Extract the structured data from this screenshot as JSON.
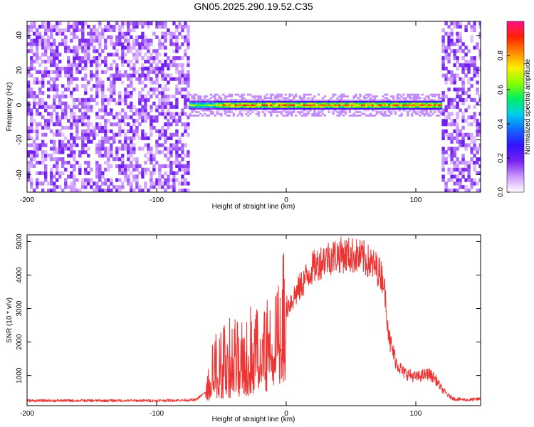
{
  "page": {
    "title": "GN05.2025.290.19.52.C35"
  },
  "colors": {
    "snr_line": "#ee3333",
    "axis": "#000000",
    "colormap": [
      "#ffffff",
      "#cc99ff",
      "#7722ee",
      "#3311ff",
      "#1166ff",
      "#00ccee",
      "#00ee66",
      "#88ff00",
      "#ffee00",
      "#ff8800",
      "#ff2200",
      "#ff1188"
    ]
  },
  "chart_data": [
    {
      "type": "heatmap",
      "title": "GN05.2025.290.19.52.C35",
      "xlabel": "Height of straight line (km)",
      "ylabel": "Frequency (Hz)",
      "xlim": [
        -200,
        150
      ],
      "ylim": [
        -50,
        48
      ],
      "xticks": [
        -200,
        -100,
        0,
        100
      ],
      "yticks": [
        -40,
        -20,
        0,
        20,
        40
      ],
      "colorbar": {
        "label": "Normalized spectral amplitude",
        "range": [
          0.0,
          1.0
        ],
        "ticks": [
          "0.0",
          "0.2",
          "0.4",
          "0.6",
          "0.8"
        ]
      },
      "regions": [
        {
          "x_range": [
            -200,
            -75
          ],
          "description": "broadband noise",
          "amplitude": [
            0.05,
            0.2
          ]
        },
        {
          "x_range": [
            -75,
            120
          ],
          "description": "narrow tone near 0 Hz",
          "center_freq_hz": 0,
          "peak_amplitude": 0.95
        },
        {
          "x_range": [
            120,
            150
          ],
          "description": "broadband noise",
          "amplitude": [
            0.05,
            0.2
          ]
        }
      ]
    },
    {
      "type": "line",
      "xlabel": "Height of straight line (km)",
      "ylabel": "SNR (10 * v/v)",
      "xlim": [
        -200,
        150
      ],
      "ylim": [
        100,
        5200
      ],
      "xticks": [
        -200,
        -100,
        0,
        100
      ],
      "yticks": [
        1000,
        2000,
        3000,
        4000,
        5000
      ],
      "series": [
        {
          "name": "SNR",
          "x": [
            -200,
            -150,
            -100,
            -70,
            -62,
            -55,
            -45,
            -35,
            -25,
            -15,
            -10,
            -5,
            0,
            10,
            20,
            30,
            40,
            50,
            60,
            70,
            75,
            80,
            85,
            90,
            100,
            110,
            115,
            120,
            125,
            130,
            140,
            150
          ],
          "y": [
            250,
            250,
            250,
            270,
            500,
            1400,
            1600,
            1700,
            2000,
            2200,
            2400,
            2600,
            3000,
            3600,
            4200,
            4500,
            4600,
            4600,
            4500,
            4200,
            3900,
            2000,
            1400,
            1100,
            950,
            1050,
            900,
            600,
            400,
            300,
            270,
            300
          ]
        }
      ]
    }
  ]
}
